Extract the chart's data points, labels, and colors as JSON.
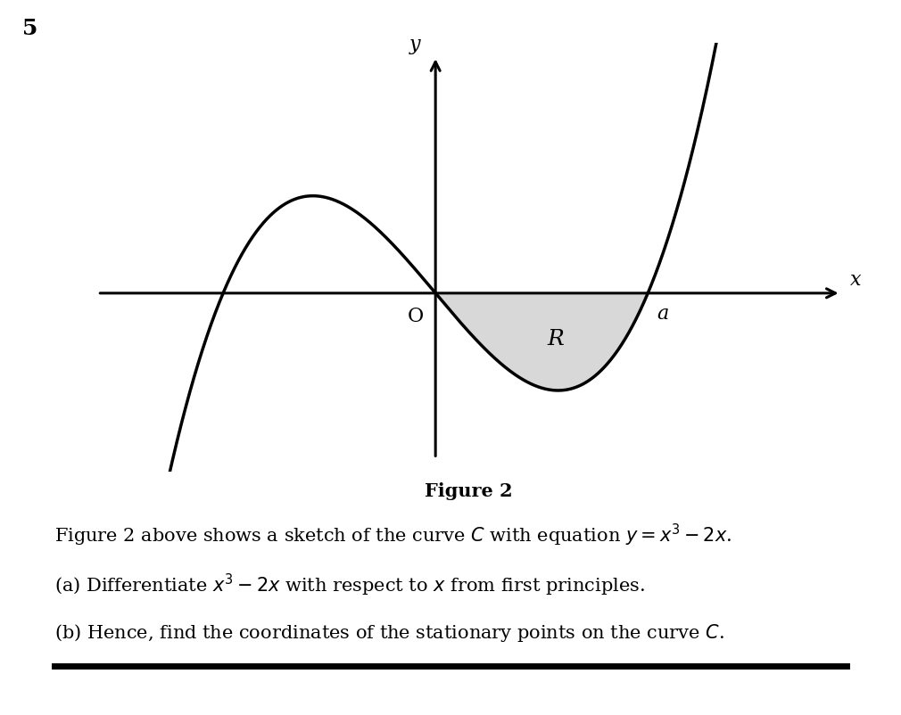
{
  "background_color": "#ffffff",
  "question_number": "5",
  "figure_label": "Figure 2",
  "figure2_text": "Figure 2 above shows a sketch of the curve $C$ with equation $y = x^3 - 2x$.",
  "part_a_text": "(a) Differentiate $x^3 - 2x$ with respect to $x$ from first principles.",
  "part_b_text": "(b) Hence, find the coordinates of the stationary points on the curve $C$.",
  "curve_color": "#000000",
  "shaded_color": "#d8d8d8",
  "axis_color": "#000000",
  "text_color": "#000000",
  "origin_label": "O",
  "region_label": "R",
  "a_label": "a",
  "x_label": "x",
  "y_label": "y",
  "curve_lw": 2.5,
  "axis_lw": 2.2,
  "question_number_fontsize": 18,
  "label_fontsize": 16,
  "figure_label_fontsize": 15,
  "body_text_fontsize": 15
}
